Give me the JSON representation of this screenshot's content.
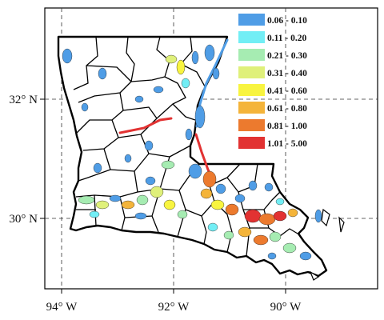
{
  "axes": {
    "lon_ticks": [
      "94° W",
      "92° W",
      "90° W"
    ],
    "lat_ticks": [
      "32° N",
      "30° N"
    ]
  },
  "legend": {
    "items": [
      {
        "label": "0.06 - 0.10",
        "color": "#4f9de6"
      },
      {
        "label": "0.11 - 0.20",
        "color": "#72eef5"
      },
      {
        "label": "0.21 - 0.30",
        "color": "#a6ecb2"
      },
      {
        "label": "0.31 - 0.40",
        "color": "#dff07a"
      },
      {
        "label": "0.41 - 0.60",
        "color": "#f8f440"
      },
      {
        "label": "0.61 - 0.80",
        "color": "#f4b43a"
      },
      {
        "label": "0.81 - 1.00",
        "color": "#ec7a2e"
      },
      {
        "label": "1.01 - 5.00",
        "color": "#e23232"
      }
    ]
  },
  "map": {
    "grid": "dashed",
    "border_color": "#000000",
    "background_color": "#ffffff"
  }
}
